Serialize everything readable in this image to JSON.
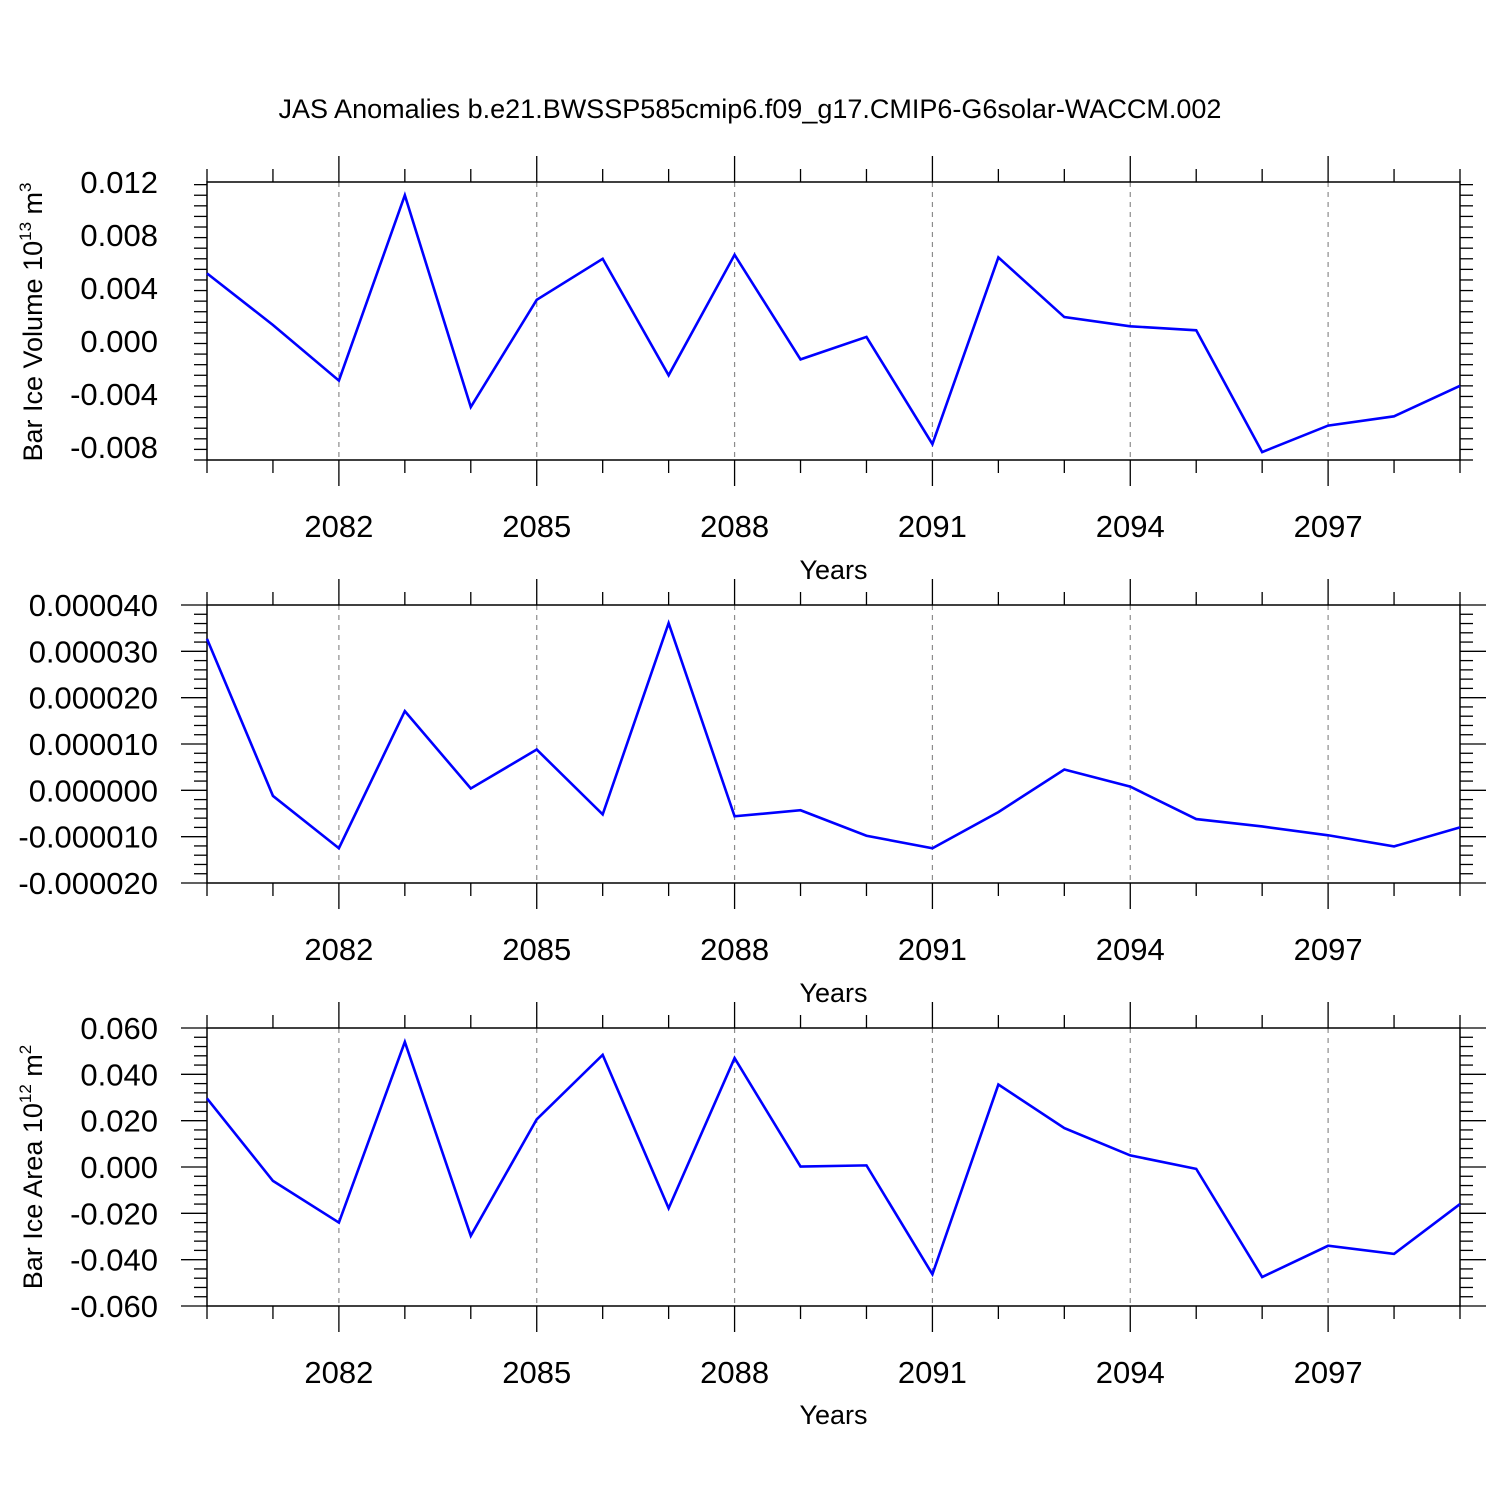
{
  "figure_title": "JAS Anomalies b.e21.BWSSP585cmip6.f09_g17.CMIP6-G6solar-WACCM.002",
  "colors": {
    "line": "#0000ff",
    "axis": "#000000",
    "grid": "#8c8c8c",
    "background": "#ffffff"
  },
  "chart_data": [
    {
      "type": "line",
      "xlabel": "Years",
      "ylabel_base": "Bar Ice Volume 10",
      "ylabel_sup": "13",
      "ylabel_unit": " m",
      "ylabel_unit_sup": "3",
      "x": [
        2080,
        2081,
        2082,
        2083,
        2084,
        2085,
        2086,
        2087,
        2088,
        2089,
        2090,
        2091,
        2092,
        2093,
        2094,
        2095,
        2096,
        2097,
        2098,
        2099
      ],
      "xlim": [
        2080,
        2099
      ],
      "xticks": [
        "2082",
        "2085",
        "2088",
        "2091",
        "2094",
        "2097"
      ],
      "ylim": [
        -0.009,
        0.012
      ],
      "yticks": [
        "0.012",
        "0.008",
        "0.004",
        "0.000",
        "-0.004",
        "-0.008"
      ],
      "series": [
        {
          "values": [
            0.0051,
            0.0012,
            -0.003,
            0.011,
            -0.005,
            0.0031,
            0.0062,
            -0.0026,
            0.0065,
            -0.0014,
            0.0003,
            -0.0078,
            0.0063,
            0.0018,
            0.0011,
            0.0008,
            -0.0084,
            -0.0064,
            -0.0057,
            -0.0034
          ]
        }
      ],
      "grid": "vertical dashed at major ticks"
    },
    {
      "type": "line",
      "xlabel": "Years",
      "ylabel_base": "",
      "ylabel_sup": "",
      "ylabel_unit": "",
      "ylabel_unit_sup": "",
      "x": [
        2080,
        2081,
        2082,
        2083,
        2084,
        2085,
        2086,
        2087,
        2088,
        2089,
        2090,
        2091,
        2092,
        2093,
        2094,
        2095,
        2096,
        2097,
        2098,
        2099
      ],
      "xlim": [
        2080,
        2099
      ],
      "xticks": [
        "2082",
        "2085",
        "2088",
        "2091",
        "2094",
        "2097"
      ],
      "ylim": [
        -2e-05,
        4e-05
      ],
      "yticks": [
        "0.000040",
        "0.000030",
        "0.000020",
        "0.000010",
        "0.000000",
        "-0.000010",
        "-0.000020"
      ],
      "series": [
        {
          "values": [
            3.27e-05,
            -1.2e-06,
            -1.25e-05,
            1.71e-05,
            4e-07,
            8.8e-06,
            -5.2e-06,
            3.61e-05,
            -5.6e-06,
            -4.3e-06,
            -9.8e-06,
            -1.25e-05,
            -4.7e-06,
            4.5e-06,
            8e-07,
            -6.2e-06,
            -7.8e-06,
            -9.7e-06,
            -1.21e-05,
            -8e-06
          ]
        }
      ],
      "grid": "vertical dashed at major ticks"
    },
    {
      "type": "line",
      "xlabel": "Years",
      "ylabel_base": "Bar Ice Area 10",
      "ylabel_sup": "12",
      "ylabel_unit": " m",
      "ylabel_unit_sup": "2",
      "x": [
        2080,
        2081,
        2082,
        2083,
        2084,
        2085,
        2086,
        2087,
        2088,
        2089,
        2090,
        2091,
        2092,
        2093,
        2094,
        2095,
        2096,
        2097,
        2098,
        2099
      ],
      "xlim": [
        2080,
        2099
      ],
      "xticks": [
        "2082",
        "2085",
        "2088",
        "2091",
        "2094",
        "2097"
      ],
      "ylim": [
        -0.06,
        0.06
      ],
      "yticks": [
        "0.060",
        "0.040",
        "0.020",
        "0.000",
        "-0.020",
        "-0.040",
        "-0.060"
      ],
      "series": [
        {
          "values": [
            0.0296,
            -0.006,
            -0.024,
            0.054,
            -0.0297,
            0.0206,
            0.0484,
            -0.0178,
            0.047,
            0.0002,
            0.0007,
            -0.0463,
            0.0356,
            0.0168,
            0.005,
            -0.0008,
            -0.0475,
            -0.034,
            -0.0375,
            -0.016
          ]
        }
      ],
      "grid": "vertical dashed at major ticks"
    }
  ]
}
